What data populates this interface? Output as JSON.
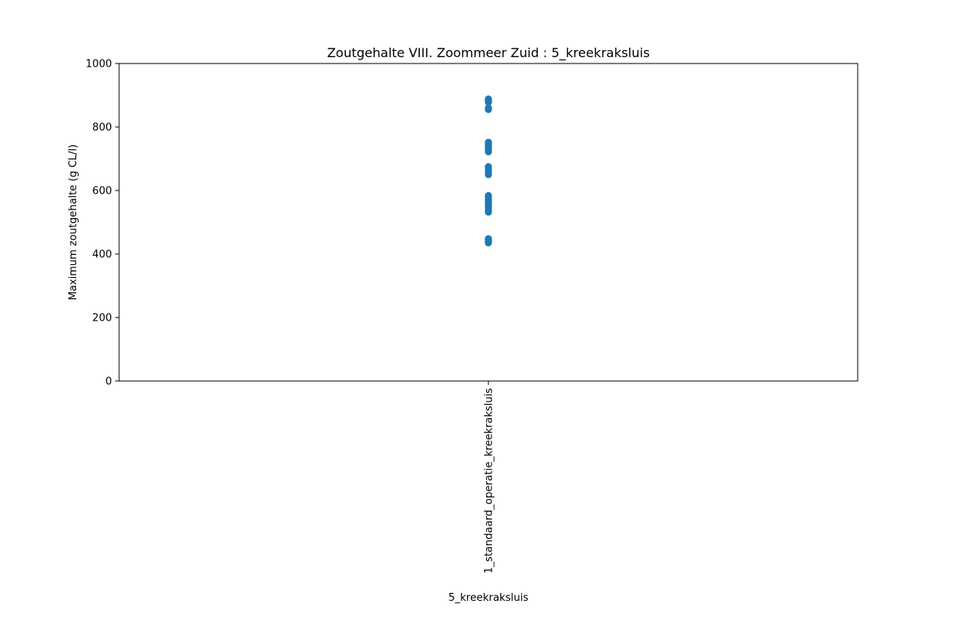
{
  "chart_data": {
    "type": "scatter",
    "title": "Zoutgehalte VIII. Zoommeer Zuid : 5_kreekraksluis",
    "xlabel": "5_kreekraksluis",
    "ylabel": "Maximum zoutgehalte (g CL/l)",
    "categories": [
      "1_standaard_operatie_kreekraksluis"
    ],
    "ylim": [
      0,
      1000
    ],
    "yticks": [
      0,
      200,
      400,
      600,
      800,
      1000
    ],
    "grid": false,
    "marker_color": "#1f77b4",
    "series": [
      {
        "category": "1_standaard_operatie_kreekraksluis",
        "values": [
          435,
          440,
          445,
          448,
          532,
          540,
          548,
          556,
          562,
          570,
          578,
          584,
          650,
          660,
          668,
          675,
          722,
          730,
          736,
          742,
          748,
          752,
          855,
          860,
          878,
          884,
          888
        ]
      }
    ]
  }
}
